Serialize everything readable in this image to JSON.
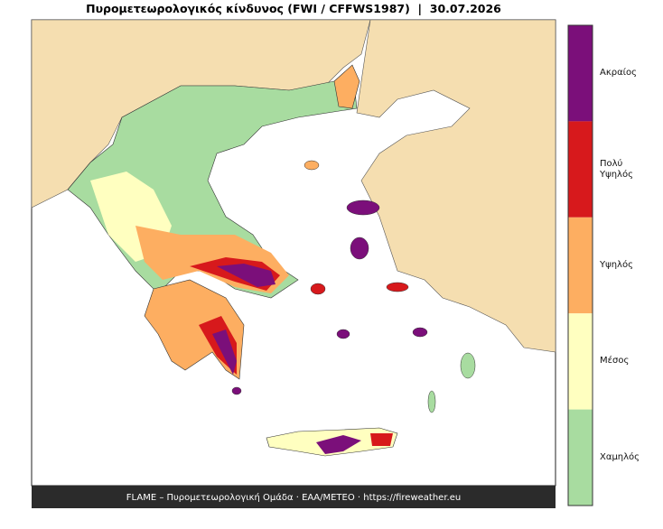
{
  "title": "Πυρομετεωρολογικός κίνδυνος (FWI / CFFWS1987)  |  30.07.2026",
  "footer": "FLAME – Πυρομετεωρολογική Ομάδα · ΕΑΑ/ΜΕΤΕΟ · https://fireweather.eu",
  "legend": [
    {
      "label": "Ακραίος",
      "color": "#7b0f7a"
    },
    {
      "label": "Πολύ Υψηλός",
      "color": "#d7191c"
    },
    {
      "label": "Υψηλός",
      "color": "#fdae61"
    },
    {
      "label": "Μέσος",
      "color": "#ffffc0"
    },
    {
      "label": "Χαμηλός",
      "color": "#a8dca0"
    }
  ]
}
